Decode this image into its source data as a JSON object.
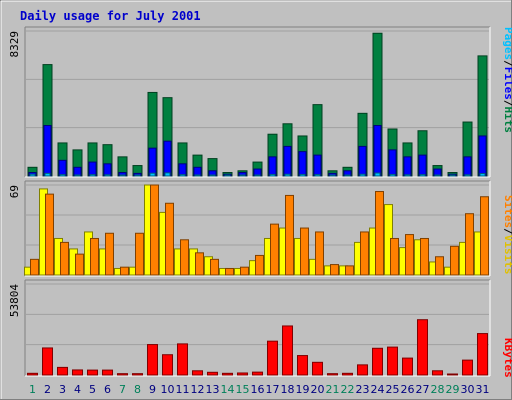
{
  "chart_data": {
    "type": "bar",
    "title": "Daily usage for July 2001",
    "days": [
      "1",
      "2",
      "3",
      "4",
      "5",
      "6",
      "7",
      "8",
      "9",
      "10",
      "11",
      "12",
      "13",
      "14",
      "15",
      "16",
      "17",
      "18",
      "19",
      "20",
      "21",
      "22",
      "23",
      "24",
      "25",
      "26",
      "27",
      "28",
      "29",
      "30",
      "31"
    ],
    "weekend_days": [
      "1",
      "7",
      "8",
      "14",
      "15",
      "21",
      "22",
      "28",
      "29"
    ],
    "panels": [
      {
        "max_label": "8329",
        "ylim": [
          0,
          8329
        ],
        "series": [
          {
            "name": "Hits",
            "color": "#008040",
            "values": [
              500,
              6400,
              1900,
              1500,
              1900,
              1800,
              1100,
              600,
              4800,
              4500,
              1900,
              1200,
              1000,
              200,
              300,
              800,
              2400,
              3000,
              2300,
              4100,
              300,
              500,
              3600,
              8200,
              2700,
              1900,
              2600,
              600,
              200,
              3100,
              6900
            ]
          },
          {
            "name": "Files",
            "color": "#0000ff",
            "values": [
              200,
              2900,
              900,
              500,
              800,
              700,
              200,
              150,
              1600,
              2000,
              700,
              500,
              300,
              100,
              200,
              400,
              1100,
              1700,
              1400,
              1200,
              150,
              300,
              1700,
              2900,
              1500,
              1100,
              1200,
              400,
              100,
              1100,
              2300
            ]
          },
          {
            "name": "Pages",
            "color": "#00c0ff",
            "values": [
              100,
              150,
              80,
              60,
              80,
              70,
              50,
              40,
              160,
              180,
              80,
              60,
              50,
              20,
              30,
              50,
              90,
              100,
              90,
              80,
              20,
              40,
              100,
              170,
              90,
              70,
              80,
              30,
              20,
              70,
              140
            ]
          }
        ]
      },
      {
        "max_label": "69",
        "ylim": [
          0,
          69
        ],
        "series": [
          {
            "name": "Visits",
            "color": "#ffff00",
            "values": [
              6,
              66,
              28,
              20,
              33,
              20,
              5,
              6,
              70,
              48,
              20,
              20,
              14,
              5,
              5,
              11,
              28,
              36,
              28,
              12,
              7,
              7,
              25,
              36,
              54,
              21,
              27,
              10,
              6,
              25,
              33
            ]
          },
          {
            "name": "Sites",
            "color": "#ff8000",
            "values": [
              12,
              62,
              25,
              16,
              28,
              32,
              6,
              32,
              69,
              55,
              27,
              17,
              12,
              5,
              6,
              15,
              39,
              61,
              36,
              33,
              8,
              7,
              33,
              64,
              28,
              31,
              28,
              14,
              22,
              47,
              60
            ]
          }
        ]
      },
      {
        "max_label": "53804",
        "ylim": [
          0,
          53804
        ],
        "series": [
          {
            "name": "KBytes",
            "color": "#ff0000",
            "values": [
              1000,
              16000,
              4500,
              3000,
              2900,
              2900,
              800,
              800,
              18000,
              12000,
              18400,
              2500,
              1600,
              1000,
              1200,
              1700,
              20000,
              29000,
              11500,
              7500,
              800,
              1000,
              6000,
              15800,
              16500,
              10000,
              32700,
              2500,
              500,
              8800,
              24500
            ]
          }
        ]
      }
    ]
  }
}
